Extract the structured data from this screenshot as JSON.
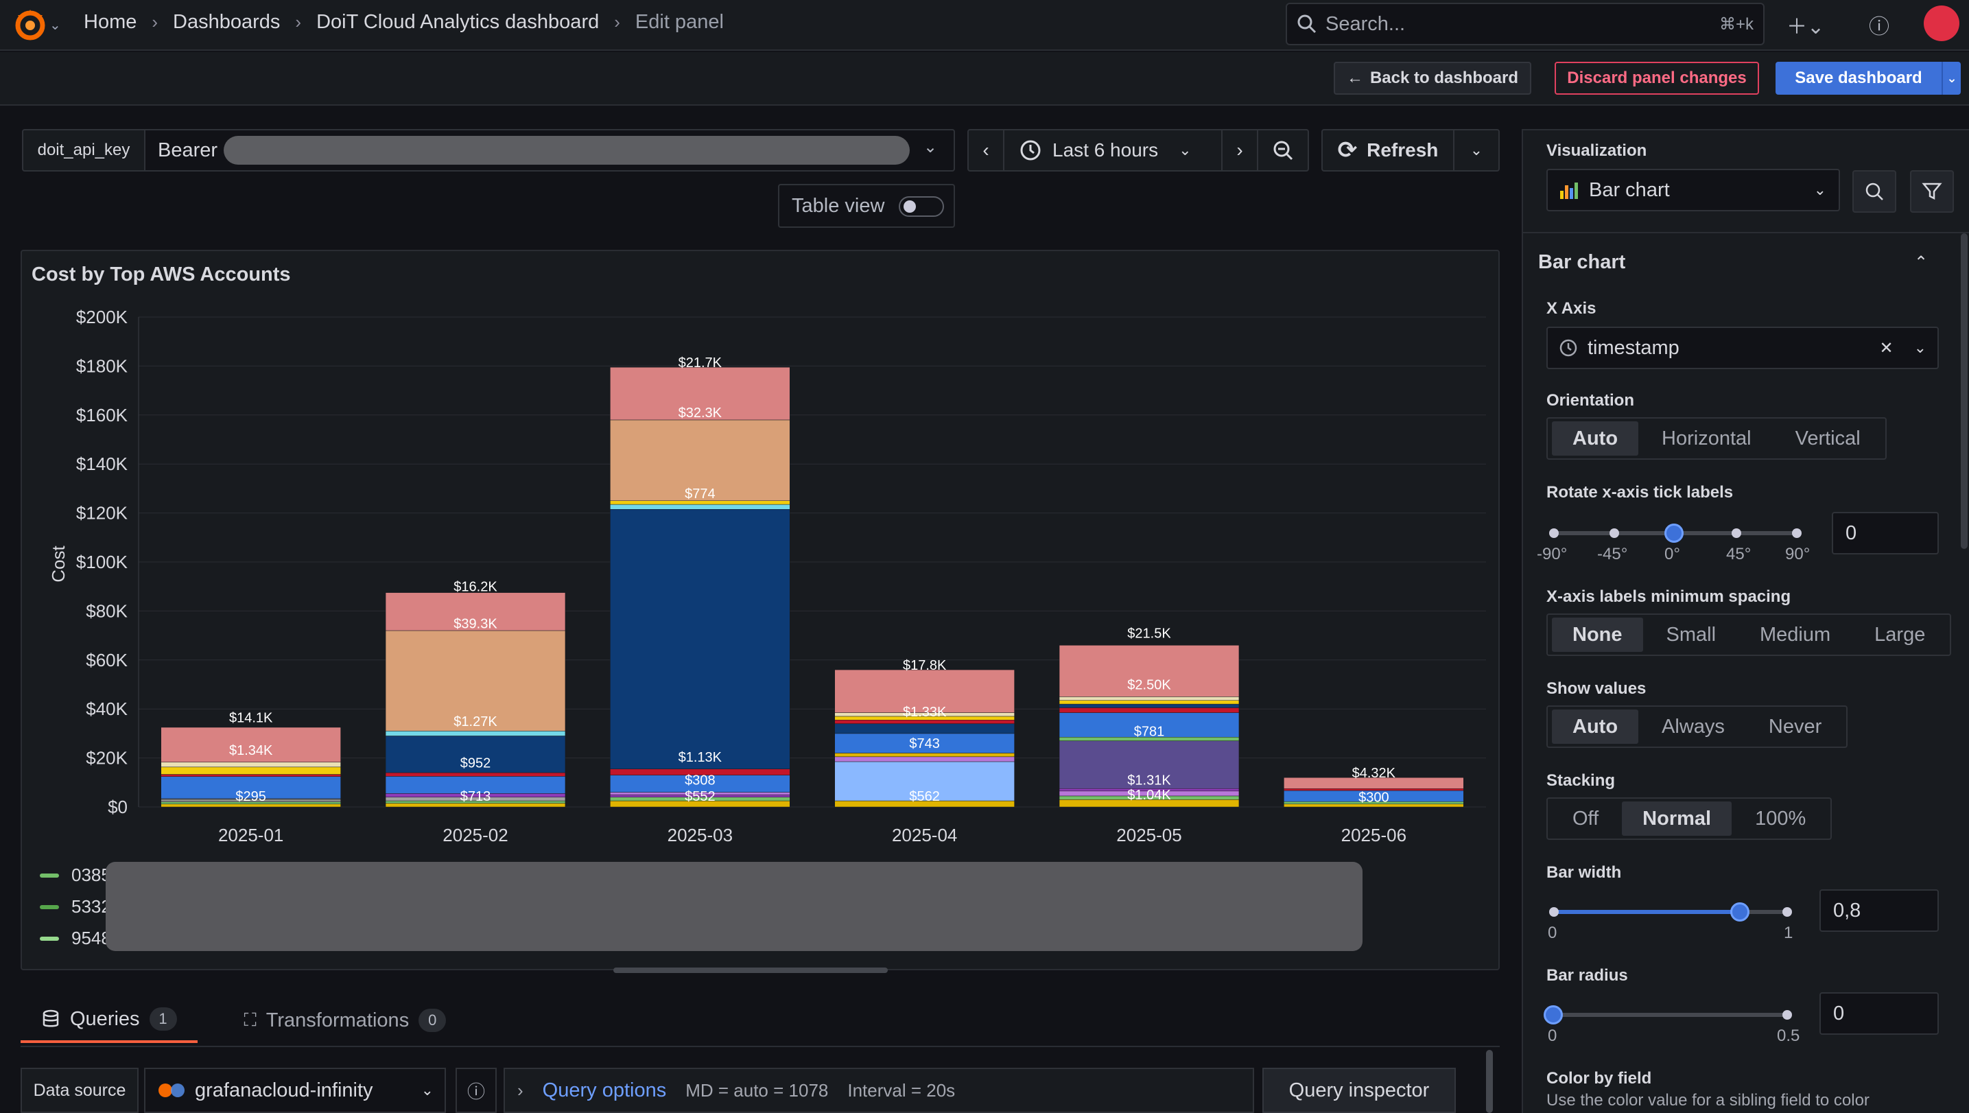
{
  "nav": {
    "breadcrumbs": [
      "Home",
      "Dashboards",
      "DoiT Cloud Analytics dashboard",
      "Edit panel"
    ],
    "search_placeholder": "Search...",
    "search_shortcut": "⌘+k"
  },
  "actions": {
    "back": "Back to dashboard",
    "discard": "Discard panel changes",
    "save": "Save dashboard"
  },
  "variables": {
    "label": "doit_api_key",
    "value_prefix": "Bearer"
  },
  "time": {
    "range": "Last 6 hours",
    "refresh": "Refresh"
  },
  "table_view": "Table view",
  "panel": {
    "title": "Cost by Top AWS Accounts",
    "legend_visible": [
      "0385",
      "5332",
      "9548"
    ],
    "legend_colors": [
      "#73bf69",
      "#56a64b",
      "#96d98d"
    ]
  },
  "chart_data": {
    "type": "bar",
    "stacked": true,
    "ylabel": "Cost",
    "xlabel": "",
    "ylim": [
      0,
      200000
    ],
    "yticks": [
      "$0",
      "$20K",
      "$40K",
      "$60K",
      "$80K",
      "$100K",
      "$120K",
      "$140K",
      "$160K",
      "$180K",
      "$200K"
    ],
    "categories": [
      "2025-01",
      "2025-02",
      "2025-03",
      "2025-04",
      "2025-05",
      "2025-06"
    ],
    "segments": [
      [
        {
          "v": 1200,
          "c": "#e0b400"
        },
        {
          "v": 900,
          "c": "#73bf69"
        },
        {
          "v": 1000,
          "c": "#8e8e8e"
        },
        {
          "v": 300,
          "c": "#a0a0a0"
        },
        {
          "v": 9000,
          "c": "#3274d9"
        },
        {
          "v": 900,
          "c": "#c4162a"
        },
        {
          "v": 3000,
          "c": "#f2cc0c"
        },
        {
          "v": 2000,
          "c": "#eadfb4"
        },
        {
          "v": 14200,
          "c": "#d98282"
        }
      ],
      [
        {
          "v": 1500,
          "c": "#e0b400"
        },
        {
          "v": 1000,
          "c": "#73bf69"
        },
        {
          "v": 1500,
          "c": "#a0a0a0"
        },
        {
          "v": 1500,
          "c": "#8f3bb8"
        },
        {
          "v": 7000,
          "c": "#3274d9"
        },
        {
          "v": 1500,
          "c": "#c4162a"
        },
        {
          "v": 15000,
          "c": "#0d3b75"
        },
        {
          "v": 2000,
          "c": "#73d8e8"
        },
        {
          "v": 41000,
          "c": "#d9a077"
        },
        {
          "v": 15500,
          "c": "#d98282"
        }
      ],
      [
        {
          "v": 2500,
          "c": "#e0b400"
        },
        {
          "v": 1500,
          "c": "#73bf69"
        },
        {
          "v": 1000,
          "c": "#8f3bb8"
        },
        {
          "v": 1000,
          "c": "#b877d9"
        },
        {
          "v": 7000,
          "c": "#3274d9"
        },
        {
          "v": 2500,
          "c": "#c4162a"
        },
        {
          "v": 106000,
          "c": "#0d3b75"
        },
        {
          "v": 2000,
          "c": "#73d8e8"
        },
        {
          "v": 1500,
          "c": "#f2cc0c"
        },
        {
          "v": 33000,
          "c": "#d9a077"
        },
        {
          "v": 21500,
          "c": "#d98282"
        }
      ],
      [
        {
          "v": 2500,
          "c": "#e0b400"
        },
        {
          "v": 16000,
          "c": "#8ab8ff"
        },
        {
          "v": 2000,
          "c": "#b877d9"
        },
        {
          "v": 1500,
          "c": "#e0b400"
        },
        {
          "v": 8000,
          "c": "#3274d9"
        },
        {
          "v": 4000,
          "c": "#0d3b75"
        },
        {
          "v": 1500,
          "c": "#c4162a"
        },
        {
          "v": 1500,
          "c": "#f2cc0c"
        },
        {
          "v": 1500,
          "c": "#eadfb4"
        },
        {
          "v": 17500,
          "c": "#d98282"
        }
      ],
      [
        {
          "v": 3000,
          "c": "#e0b400"
        },
        {
          "v": 1500,
          "c": "#73bf69"
        },
        {
          "v": 2000,
          "c": "#b877d9"
        },
        {
          "v": 1000,
          "c": "#8f3bb8"
        },
        {
          "v": 19500,
          "c": "#5a4c8f"
        },
        {
          "v": 1500,
          "c": "#73bf69"
        },
        {
          "v": 10000,
          "c": "#3274d9"
        },
        {
          "v": 2000,
          "c": "#c4162a"
        },
        {
          "v": 1500,
          "c": "#0d3b75"
        },
        {
          "v": 1500,
          "c": "#f2cc0c"
        },
        {
          "v": 1500,
          "c": "#eadfb4"
        },
        {
          "v": 21000,
          "c": "#d98282"
        }
      ],
      [
        {
          "v": 1200,
          "c": "#e0b400"
        },
        {
          "v": 1000,
          "c": "#73bf69"
        },
        {
          "v": 4500,
          "c": "#3274d9"
        },
        {
          "v": 800,
          "c": "#c4162a"
        },
        {
          "v": 4500,
          "c": "#d98282"
        }
      ]
    ],
    "value_labels": [
      {
        "cat": 0,
        "y": 4500,
        "t": "$295"
      },
      {
        "cat": 0,
        "y": 23300,
        "t": "$1.34K"
      },
      {
        "cat": 0,
        "y": 36600,
        "t": "$14.1K"
      },
      {
        "cat": 1,
        "y": 4500,
        "t": "$713"
      },
      {
        "cat": 1,
        "y": 18000,
        "t": "$952"
      },
      {
        "cat": 1,
        "y": 35000,
        "t": "$1.27K"
      },
      {
        "cat": 1,
        "y": 75000,
        "t": "$39.3K"
      },
      {
        "cat": 1,
        "y": 90000,
        "t": "$16.2K"
      },
      {
        "cat": 2,
        "y": 4500,
        "t": "$552"
      },
      {
        "cat": 2,
        "y": 11000,
        "t": "$308"
      },
      {
        "cat": 2,
        "y": 20500,
        "t": "$1.13K"
      },
      {
        "cat": 2,
        "y": 128000,
        "t": "$774"
      },
      {
        "cat": 2,
        "y": 161000,
        "t": "$32.3K"
      },
      {
        "cat": 2,
        "y": 181500,
        "t": "$21.7K"
      },
      {
        "cat": 3,
        "y": 4500,
        "t": "$562"
      },
      {
        "cat": 3,
        "y": 26000,
        "t": "$743"
      },
      {
        "cat": 3,
        "y": 39000,
        "t": "$1.33K"
      },
      {
        "cat": 3,
        "y": 58000,
        "t": "$17.8K"
      },
      {
        "cat": 4,
        "y": 5000,
        "t": "$1.04K"
      },
      {
        "cat": 4,
        "y": 11000,
        "t": "$1.31K"
      },
      {
        "cat": 4,
        "y": 31000,
        "t": "$781"
      },
      {
        "cat": 4,
        "y": 50000,
        "t": "$2.50K"
      },
      {
        "cat": 4,
        "y": 71000,
        "t": "$21.5K"
      },
      {
        "cat": 5,
        "y": 4000,
        "t": "$300"
      },
      {
        "cat": 5,
        "y": 14000,
        "t": "$4.32K"
      }
    ]
  },
  "tabs": {
    "queries": "Queries",
    "queries_count": "1",
    "transformations": "Transformations",
    "transformations_count": "0"
  },
  "query": {
    "ds_label": "Data source",
    "ds_value": "grafanacloud-infinity",
    "options_link": "Query options",
    "md": "MD = auto = 1078",
    "interval": "Interval = 20s",
    "inspector": "Query inspector"
  },
  "options": {
    "viz_label": "Visualization",
    "viz_value": "Bar chart",
    "section": "Bar chart",
    "x_axis_label": "X Axis",
    "x_axis_value": "timestamp",
    "orientation_label": "Orientation",
    "orientation_options": [
      "Auto",
      "Horizontal",
      "Vertical"
    ],
    "orientation_selected": "Auto",
    "rotate_label": "Rotate x-axis tick labels",
    "rotate_ticks": [
      "-90°",
      "-45°",
      "0°",
      "45°",
      "90°"
    ],
    "rotate_value": "0",
    "spacing_label": "X-axis labels minimum spacing",
    "spacing_options": [
      "None",
      "Small",
      "Medium",
      "Large"
    ],
    "spacing_selected": "None",
    "show_values_label": "Show values",
    "show_values_options": [
      "Auto",
      "Always",
      "Never"
    ],
    "show_values_selected": "Auto",
    "stacking_label": "Stacking",
    "stacking_options": [
      "Off",
      "Normal",
      "100%"
    ],
    "stacking_selected": "Normal",
    "bar_width_label": "Bar width",
    "bar_width_min": "0",
    "bar_width_max": "1",
    "bar_width_value": "0,8",
    "bar_width_fraction": 0.8,
    "bar_radius_label": "Bar radius",
    "bar_radius_min": "0",
    "bar_radius_max": "0.5",
    "bar_radius_value": "0",
    "bar_radius_fraction": 0,
    "color_by_label": "Color by field",
    "color_by_desc": "Use the color value for a sibling field to color"
  }
}
